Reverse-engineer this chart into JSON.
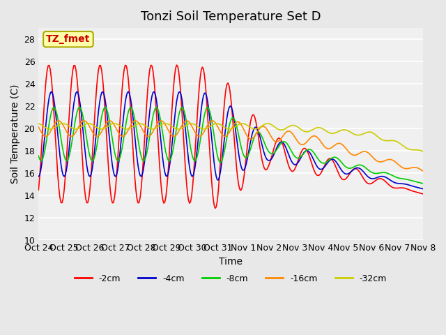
{
  "title": "Tonzi Soil Temperature Set D",
  "xlabel": "Time",
  "ylabel": "Soil Temperature (C)",
  "ylim": [
    10,
    29
  ],
  "yticks": [
    10,
    12,
    14,
    16,
    18,
    20,
    22,
    24,
    26,
    28
  ],
  "xtick_labels": [
    "Oct 24",
    "Oct 25",
    "Oct 26",
    "Oct 27",
    "Oct 28",
    "Oct 29",
    "Oct 30",
    "Oct 31",
    "Nov 1",
    "Nov 2",
    "Nov 3",
    "Nov 4",
    "Nov 5",
    "Nov 6",
    "Nov 7",
    "Nov 8"
  ],
  "series_colors": [
    "#ff0000",
    "#0000cc",
    "#00cc00",
    "#ff8800",
    "#cccc00"
  ],
  "series_labels": [
    "-2cm",
    "-4cm",
    "-8cm",
    "-16cm",
    "-32cm"
  ],
  "annotation_text": "TZ_fmet",
  "annotation_box_color": "#ffffaa",
  "annotation_box_edge": "#aaaa00",
  "bg_color": "#e8e8e8",
  "plot_bg_color": "#f0f0f0",
  "grid_color": "#ffffff",
  "title_fontsize": 13,
  "axis_label_fontsize": 10,
  "tick_fontsize": 9,
  "legend_fontsize": 9
}
